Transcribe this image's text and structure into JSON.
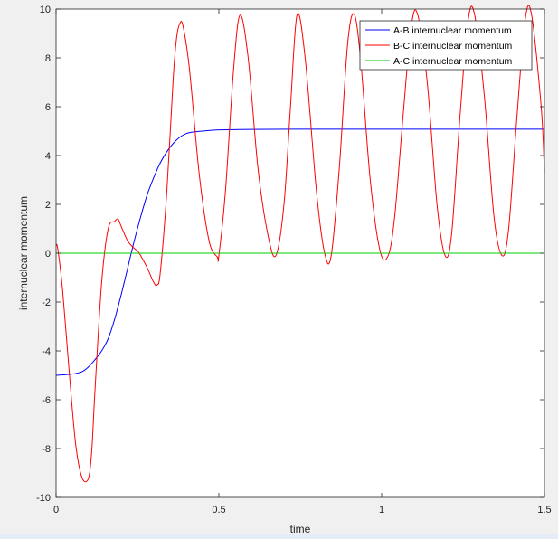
{
  "chart_data": {
    "type": "line",
    "title": "",
    "xlabel": "time",
    "ylabel": "internuclear momentum",
    "xlim": [
      0,
      1.5
    ],
    "ylim": [
      -10,
      10
    ],
    "xticks": [
      0,
      0.5,
      1,
      1.5
    ],
    "xtick_labels": [
      "0",
      "0.5",
      "1",
      "1.5"
    ],
    "yticks": [
      -10,
      -8,
      -6,
      -4,
      -2,
      0,
      2,
      4,
      6,
      8,
      10
    ],
    "ytick_labels": [
      "-10",
      "-8",
      "-6",
      "-4",
      "-2",
      "0",
      "2",
      "4",
      "6",
      "8",
      "10"
    ],
    "grid": false,
    "legend_position": "top-right",
    "series": [
      {
        "name": "A-B internuclear momentum",
        "color": "#0000ff",
        "x": [
          0,
          0.05,
          0.08,
          0.1,
          0.12,
          0.14,
          0.16,
          0.18,
          0.2,
          0.22,
          0.24,
          0.26,
          0.28,
          0.3,
          0.32,
          0.34,
          0.36,
          0.38,
          0.4,
          0.42,
          0.45,
          0.5,
          0.6,
          0.8,
          1.0,
          1.2,
          1.5
        ],
        "y": [
          -5.0,
          -4.95,
          -4.85,
          -4.65,
          -4.35,
          -4.0,
          -3.5,
          -2.7,
          -1.7,
          -0.6,
          0.5,
          1.5,
          2.4,
          3.1,
          3.7,
          4.15,
          4.5,
          4.75,
          4.9,
          4.96,
          5.0,
          5.05,
          5.07,
          5.08,
          5.08,
          5.08,
          5.08
        ]
      },
      {
        "name": "B-C internuclear momentum",
        "color": "#ff0000",
        "x": [
          0,
          0.005,
          0.02,
          0.04,
          0.06,
          0.08,
          0.1,
          0.11,
          0.12,
          0.14,
          0.16,
          0.18,
          0.19,
          0.2,
          0.22,
          0.24,
          0.25,
          0.26,
          0.28,
          0.3,
          0.31,
          0.32,
          0.34,
          0.36,
          0.37,
          0.38,
          0.39,
          0.41,
          0.44,
          0.47,
          0.495,
          0.5,
          0.52,
          0.545,
          0.565,
          0.59,
          0.62,
          0.65,
          0.675,
          0.7,
          0.72,
          0.74,
          0.765,
          0.8,
          0.825,
          0.845,
          0.87,
          0.895,
          0.915,
          0.935,
          0.965,
          0.995,
          1.02,
          1.04,
          1.065,
          1.09,
          1.11,
          1.14,
          1.17,
          1.195,
          1.215,
          1.24,
          1.265,
          1.285,
          1.315,
          1.345,
          1.37,
          1.39,
          1.415,
          1.44,
          1.46,
          1.49,
          1.5
        ],
        "y": [
          0.3,
          0.2,
          -1.5,
          -4.8,
          -7.8,
          -9.2,
          -9.2,
          -8.0,
          -5.5,
          -1.2,
          1.0,
          1.3,
          1.4,
          1.1,
          0.5,
          0.2,
          0.1,
          -0.1,
          -0.6,
          -1.2,
          -1.3,
          -0.8,
          2.5,
          7.2,
          8.8,
          9.4,
          9.3,
          7.5,
          3.2,
          0.5,
          -0.15,
          -0.1,
          2.5,
          7.5,
          9.75,
          8.0,
          3.5,
          0.8,
          -0.1,
          2.0,
          6.0,
          9.75,
          8.0,
          2.5,
          0.0,
          -0.1,
          3.5,
          8.5,
          9.8,
          8.0,
          3.0,
          0.1,
          -0.1,
          1.5,
          5.5,
          9.2,
          9.8,
          7.0,
          2.0,
          -0.1,
          0.8,
          5.5,
          9.5,
          9.8,
          6.5,
          1.5,
          -0.1,
          1.0,
          5.5,
          9.5,
          9.8,
          6.0,
          3.3
        ]
      },
      {
        "name": "A-C internuclear momentum",
        "color": "#00cc00",
        "x": [
          0,
          1.5
        ],
        "y": [
          0,
          0
        ]
      }
    ]
  }
}
